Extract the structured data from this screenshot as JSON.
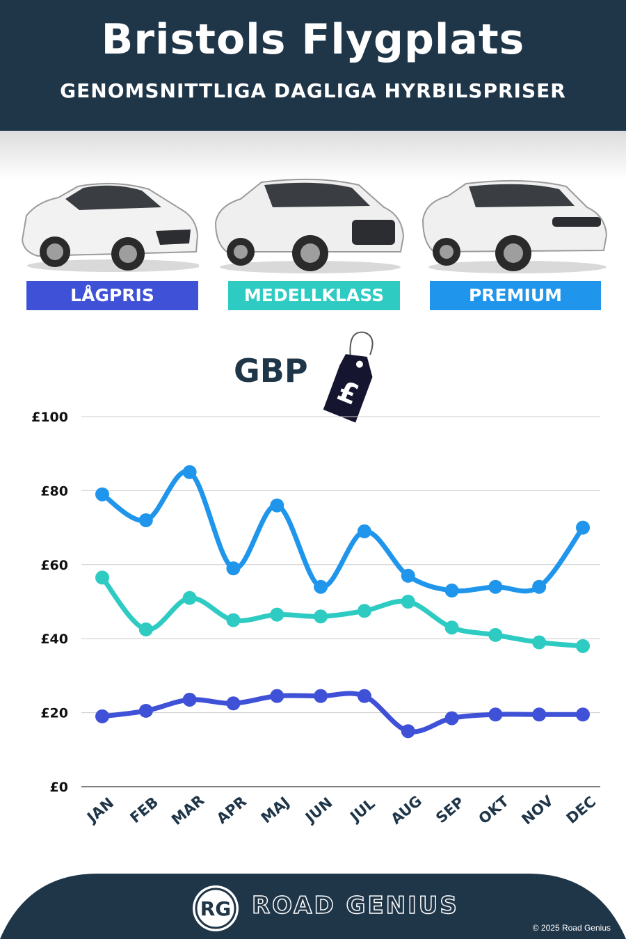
{
  "header": {
    "title": "Bristols Flygplats",
    "subtitle": "GENOMSNITTLIGA DAGLIGA HYRBILSPRISER"
  },
  "categories": [
    {
      "label": "LÅGPRIS",
      "color": "#3f51d6"
    },
    {
      "label": "MEDELLKLASS",
      "color": "#2ecbc3"
    },
    {
      "label": "PREMIUM",
      "color": "#1f95eb"
    }
  ],
  "currency": {
    "label": "GBP",
    "symbol": "£"
  },
  "chart_data": {
    "type": "line",
    "categories": [
      "JAN",
      "FEB",
      "MAR",
      "APR",
      "MAJ",
      "JUN",
      "JUL",
      "AUG",
      "SEP",
      "OKT",
      "NOV",
      "DEC"
    ],
    "ylim": [
      0,
      100
    ],
    "yticks": [
      0,
      20,
      40,
      60,
      80,
      100
    ],
    "ytick_labels": [
      "£0",
      "£20",
      "£40",
      "£60",
      "£80",
      "£100"
    ],
    "grid": true,
    "series": [
      {
        "name": "PREMIUM",
        "color": "#1f95eb",
        "values": [
          79,
          72,
          85,
          59,
          76,
          54,
          69,
          57,
          53,
          54,
          54,
          70
        ]
      },
      {
        "name": "MEDELLKLASS",
        "color": "#2ecbc3",
        "values": [
          56.5,
          42.5,
          51,
          45,
          46.5,
          46,
          47.5,
          50,
          43,
          41,
          39,
          38
        ]
      },
      {
        "name": "LÅGPRIS",
        "color": "#3f51d6",
        "values": [
          19,
          20.5,
          23.5,
          22.5,
          24.5,
          24.5,
          24.5,
          15,
          18.5,
          19.5,
          19.5,
          19.5
        ]
      }
    ]
  },
  "footer": {
    "logo_text": "RG",
    "brand": "ROAD GENIUS",
    "copyright": "© 2025 Road Genius",
    "color": "#1f3548"
  }
}
